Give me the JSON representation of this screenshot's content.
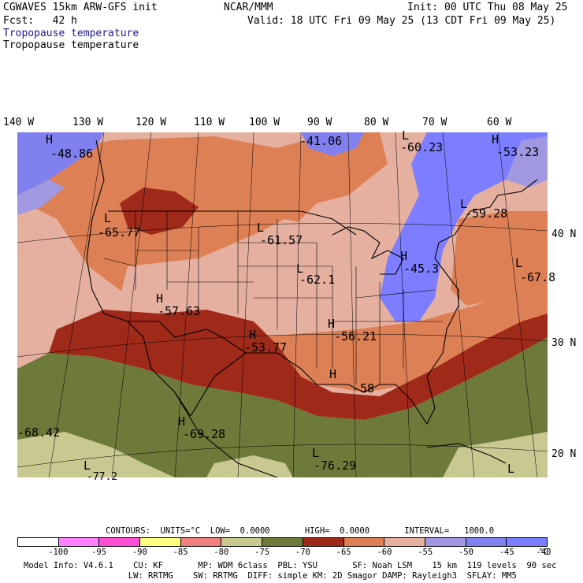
{
  "header": {
    "left_line1": "CGWAVES 15km ARW-GFS init",
    "center_line1": "NCAR/MMM",
    "right_line1": "Init: 00 UTC Thu 08 May 25",
    "left_line2": "Fcst:   42 h",
    "right_line2": "Valid: 18 UTC Fri 09 May 25 (13 CDT Fri 09 May 25)",
    "field_title_1": "Tropopause temperature",
    "field_title_2": "Tropopause temperature"
  },
  "lon_labels": [
    "140 W",
    "130 W",
    "120 W",
    "110 W",
    "100 W",
    "90 W",
    "80 W",
    "70 W",
    "60 W"
  ],
  "lat_labels": [
    "40 N",
    "30 N",
    "20 N"
  ],
  "map_colors": {
    "c_100_95": "#ff80ff",
    "c_95_90": "#ff4fd6",
    "c_90_85": "#ffff80",
    "c_85_80": "#f08080",
    "c_80_75": "#c8c890",
    "c_75_70": "#6e7a3a",
    "c_70_65": "#a02a1a",
    "c_65_60": "#de8055",
    "c_60_55": "#e5b0a0",
    "c_55_50": "#a098e0",
    "c_50_45": "#8080ef",
    "c_45_40": "#7d7dff"
  },
  "map_labels": [
    {
      "text": "H",
      "id": "h1"
    },
    {
      "text": "-48.86",
      "id": "v1"
    },
    {
      "text": "-41.06",
      "id": "v2"
    },
    {
      "text": "L",
      "id": "l1"
    },
    {
      "text": "-60.23",
      "id": "v3"
    },
    {
      "text": "H",
      "id": "h2"
    },
    {
      "text": "-53.23",
      "id": "v4"
    },
    {
      "text": "L",
      "id": "l2"
    },
    {
      "text": "-65.77",
      "id": "v5"
    },
    {
      "text": "L",
      "id": "l3"
    },
    {
      "text": "-61.57",
      "id": "v6"
    },
    {
      "text": "L",
      "id": "l4"
    },
    {
      "text": "-59.28",
      "id": "v7"
    },
    {
      "text": "H",
      "id": "h3"
    },
    {
      "text": "-45.3",
      "id": "v8"
    },
    {
      "text": "L",
      "id": "l5"
    },
    {
      "text": "-62.1",
      "id": "v9"
    },
    {
      "text": "L",
      "id": "l6"
    },
    {
      "text": "-67.8",
      "id": "v10"
    },
    {
      "text": "H",
      "id": "h4"
    },
    {
      "text": "-57.63",
      "id": "v11"
    },
    {
      "text": "H",
      "id": "h5"
    },
    {
      "text": "-53.77",
      "id": "v12"
    },
    {
      "text": "H",
      "id": "h6"
    },
    {
      "text": "-56.21",
      "id": "v13"
    },
    {
      "text": "H",
      "id": "h7"
    },
    {
      "text": "-58",
      "id": "v14"
    },
    {
      "text": "H",
      "id": "h8"
    },
    {
      "text": "-69.28",
      "id": "v15"
    },
    {
      "text": "-68.42",
      "id": "v16"
    },
    {
      "text": "L",
      "id": "l7"
    },
    {
      "text": "-76.29",
      "id": "v17"
    },
    {
      "text": "L",
      "id": "l8"
    },
    {
      "text": "-77.2",
      "id": "v18"
    },
    {
      "text": "L",
      "id": "l9"
    }
  ],
  "contours_line": "CONTOURS:  UNITS=°C  LOW=  0.0000       HIGH=  0.0000       INTERVAL=   1000.0",
  "colorbar": {
    "colors": [
      "#ffffff",
      "#ff80ff",
      "#ff4fd6",
      "#ffff80",
      "#f08080",
      "#c8c890",
      "#6e7a3a",
      "#a02a1a",
      "#de8055",
      "#e5b0a0",
      "#a098e0",
      "#8080ef",
      "#7d7dff"
    ],
    "labels": [
      "-100",
      "-95",
      "-90",
      "-85",
      "-80",
      "-75",
      "-70",
      "-65",
      "-60",
      "-55",
      "-50",
      "-45",
      "-40",
      "°C"
    ]
  },
  "footer": {
    "line1": "Model Info: V4.6.1    CU: KF       MP: WDM 6class  PBL: YSU       SF: Noah LSM    15 km  119 levels  90 sec",
    "line2": "                     LW: RRTMG    SW: RRTMG  DIFF: simple KM: 2D Smagor DAMP: Rayleigh3  SFLAY: MM5"
  }
}
